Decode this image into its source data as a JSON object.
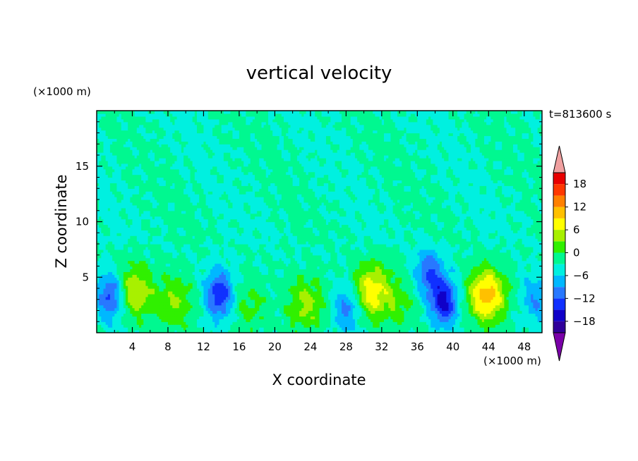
{
  "chart_data": {
    "type": "heatmap",
    "title": "vertical velocity",
    "xlabel": "X coordinate",
    "ylabel": "Z coordinate",
    "x_unit": "(×1000 m)",
    "y_unit": "(×1000 m)",
    "time_label": "t=813600 s",
    "xlim": [
      0,
      50
    ],
    "ylim": [
      0,
      20
    ],
    "xticks": [
      4,
      8,
      12,
      16,
      20,
      24,
      28,
      32,
      36,
      40,
      44,
      48
    ],
    "yticks": [
      5,
      10,
      15
    ],
    "colorbar": {
      "levels": [
        -21,
        -18,
        -15,
        -12,
        -9,
        -6,
        -3,
        0,
        3,
        6,
        9,
        12,
        15,
        18,
        21
      ],
      "colors": [
        "#7a00a8",
        "#30009a",
        "#1000c8",
        "#1030ff",
        "#2878ff",
        "#00b8ff",
        "#00f0e0",
        "#00f890",
        "#30f000",
        "#a8f000",
        "#ffff00",
        "#ffc000",
        "#ff8000",
        "#ff3800",
        "#e80000",
        "#f0a0a0"
      ],
      "tick_values": [
        18,
        12,
        6,
        0,
        -6,
        -12,
        -18
      ],
      "extend": "both"
    },
    "features": [
      {
        "kind": "updraft",
        "x": 4.2,
        "z": 3.8,
        "peak": 9
      },
      {
        "kind": "updraft",
        "x": 8.8,
        "z": 2.8,
        "peak": 6
      },
      {
        "kind": "updraft",
        "x": 17.2,
        "z": 2.4,
        "peak": 4
      },
      {
        "kind": "updraft",
        "x": 23.5,
        "z": 2.6,
        "peak": 7
      },
      {
        "kind": "updraft",
        "x": 30.8,
        "z": 3.8,
        "peak": 11
      },
      {
        "kind": "updraft",
        "x": 34.0,
        "z": 2.6,
        "peak": 4
      },
      {
        "kind": "updraft",
        "x": 43.8,
        "z": 3.4,
        "peak": 14
      },
      {
        "kind": "downdraft",
        "x": 1.6,
        "z": 3.3,
        "peak": -11
      },
      {
        "kind": "downdraft",
        "x": 13.8,
        "z": 3.5,
        "peak": -12
      },
      {
        "kind": "downdraft",
        "x": 28.2,
        "z": 2.2,
        "peak": -8
      },
      {
        "kind": "downdraft",
        "x": 37.3,
        "z": 5.4,
        "peak": -9
      },
      {
        "kind": "downdraft",
        "x": 39.0,
        "z": 2.8,
        "peak": -13
      },
      {
        "kind": "downdraft",
        "x": 49.3,
        "z": 3.1,
        "peak": -6
      }
    ]
  }
}
